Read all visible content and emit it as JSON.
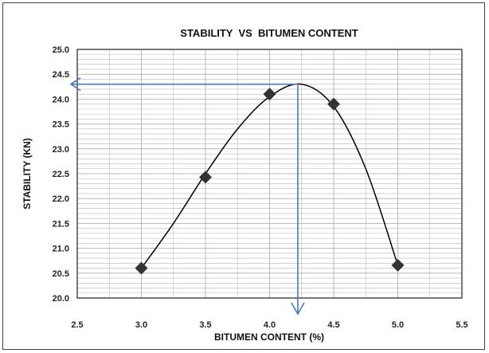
{
  "chart_data": {
    "type": "scatter",
    "title": "STABILITY  VS  BITUMEN CONTENT",
    "xlabel": "BITUMEN CONTENT (%)",
    "ylabel": "STABILITY (KN)",
    "xlim": [
      2.5,
      5.5
    ],
    "ylim": [
      20.0,
      25.0
    ],
    "x_ticks": [
      "2.5",
      "3.0",
      "3.5",
      "4.0",
      "4.5",
      "5.0",
      "5.5"
    ],
    "y_ticks": [
      "20.0",
      "20.5",
      "21.0",
      "21.5",
      "22.0",
      "22.5",
      "23.0",
      "23.5",
      "24.0",
      "24.5",
      "25.0"
    ],
    "grid": true,
    "legend": "none",
    "series": [
      {
        "x": [
          3.0,
          3.5,
          4.0,
          4.5,
          5.0
        ],
        "y": [
          20.6,
          22.43,
          24.1,
          23.9,
          20.66
        ]
      }
    ],
    "fit_curve": {
      "x": [
        3.0,
        3.25,
        3.5,
        3.75,
        4.0,
        4.25,
        4.5,
        4.75,
        5.0
      ],
      "y": [
        20.6,
        21.5,
        22.5,
        23.4,
        24.05,
        24.3,
        23.85,
        22.6,
        20.66
      ]
    },
    "optimum_marker": {
      "x": 4.22,
      "y": 24.3
    },
    "colors": {
      "marker": "#333333",
      "curve": "#000000",
      "guide_arrow": "#4a78c2",
      "grid": "#b8b8b8",
      "plot_border": "#222222"
    }
  }
}
